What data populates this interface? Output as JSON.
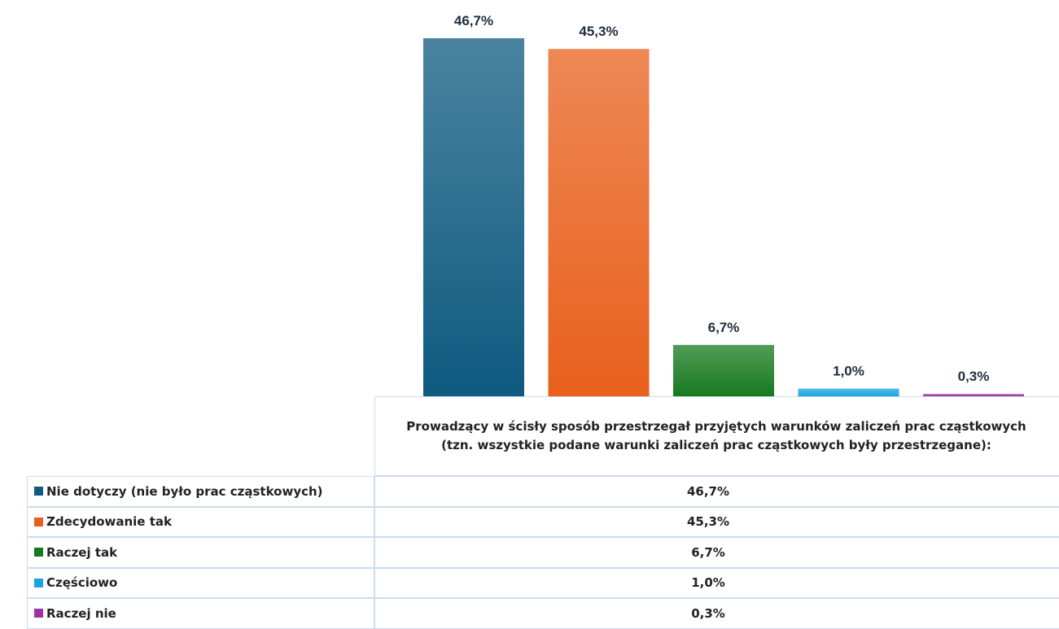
{
  "chart_data": {
    "type": "bar",
    "categories": [
      "Prowadzący w ścisły sposób przestrzegał przyjętych warunków zaliczeń prac cząstkowych (tzn. wszystkie podane warunki zaliczeń prac cząstkowych były przestrzegane):"
    ],
    "series": [
      {
        "name": "Nie dotyczy (nie było prac cząstkowych)",
        "color": "#0e5a80",
        "values": [
          46.7
        ],
        "value_labels": [
          "46,7%"
        ]
      },
      {
        "name": "Zdecydowanie tak",
        "color": "#e8601c",
        "values": [
          45.3
        ],
        "value_labels": [
          "45,3%"
        ]
      },
      {
        "name": "Raczej tak",
        "color": "#177a1f",
        "values": [
          6.7
        ],
        "value_labels": [
          "6,7%"
        ]
      },
      {
        "name": "Częściowo",
        "color": "#1aa3e0",
        "values": [
          1.0
        ],
        "value_labels": [
          "1,0%"
        ]
      },
      {
        "name": "Raczej nie",
        "color": "#a033a0",
        "values": [
          0.3
        ],
        "value_labels": [
          "0,3%"
        ]
      }
    ]
  }
}
